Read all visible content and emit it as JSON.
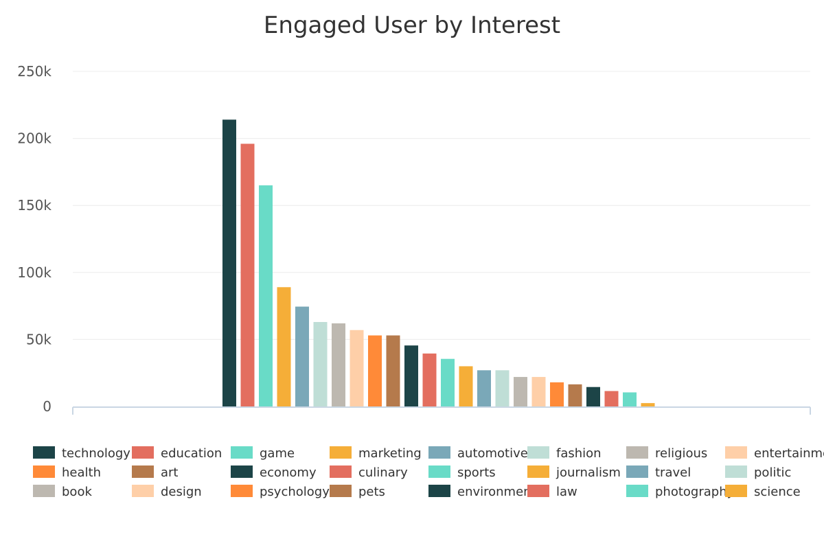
{
  "chart_data": {
    "type": "bar",
    "title": "Engaged User by Interest",
    "y_ticks": [
      "0",
      "50k",
      "100k",
      "150k",
      "200k",
      "250k"
    ],
    "ylim": [
      0,
      250000
    ],
    "grid": true,
    "legend_position": "bottom",
    "series": [
      {
        "name": "technology",
        "value": 214000,
        "color": "#1c4447"
      },
      {
        "name": "education",
        "value": 196000,
        "color": "#e36e5f"
      },
      {
        "name": "game",
        "value": 165000,
        "color": "#69dbc7"
      },
      {
        "name": "marketing",
        "value": 89000,
        "color": "#f5ae38"
      },
      {
        "name": "automotive",
        "value": 74500,
        "color": "#7aa8b8"
      },
      {
        "name": "fashion",
        "value": 63000,
        "color": "#bfded6"
      },
      {
        "name": "religious",
        "value": 62000,
        "color": "#bdb8b0"
      },
      {
        "name": "entertainment",
        "value": 57000,
        "color": "#fecfa8"
      },
      {
        "name": "health",
        "value": 53000,
        "color": "#ff8a38"
      },
      {
        "name": "art",
        "value": 53000,
        "color": "#b57a4c"
      },
      {
        "name": "economy",
        "value": 45500,
        "color": "#1c4447"
      },
      {
        "name": "culinary",
        "value": 39500,
        "color": "#e36e5f"
      },
      {
        "name": "sports",
        "value": 35500,
        "color": "#69dbc7"
      },
      {
        "name": "journalism",
        "value": 30000,
        "color": "#f5ae38"
      },
      {
        "name": "travel",
        "value": 27000,
        "color": "#7aa8b8"
      },
      {
        "name": "politic",
        "value": 27000,
        "color": "#bfded6"
      },
      {
        "name": "book",
        "value": 22000,
        "color": "#bdb8b0"
      },
      {
        "name": "design",
        "value": 22000,
        "color": "#fecfa8"
      },
      {
        "name": "psychology",
        "value": 18000,
        "color": "#ff8a38"
      },
      {
        "name": "pets",
        "value": 16500,
        "color": "#b57a4c"
      },
      {
        "name": "environment",
        "value": 14500,
        "color": "#1c4447"
      },
      {
        "name": "law",
        "value": 11500,
        "color": "#e36e5f"
      },
      {
        "name": "photography",
        "value": 10500,
        "color": "#69dbc7"
      },
      {
        "name": "science",
        "value": 2500,
        "color": "#f5ae38"
      }
    ]
  }
}
